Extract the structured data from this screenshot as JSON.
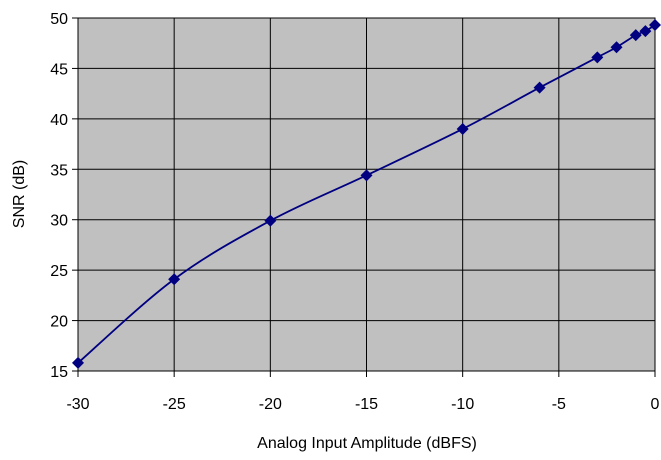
{
  "chart_data": {
    "type": "line",
    "title": "",
    "xlabel": "Analog Input Amplitude (dBFS)",
    "ylabel": "SNR (dB)",
    "xlim": [
      -30,
      0
    ],
    "ylim": [
      15,
      50
    ],
    "xticks": [
      -30,
      -25,
      -20,
      -15,
      -10,
      -5,
      0
    ],
    "yticks": [
      15,
      20,
      25,
      30,
      35,
      40,
      45,
      50
    ],
    "grid": true,
    "legend": "none",
    "colors": {
      "plot_background": "#c0c0c0",
      "line": "#000080",
      "marker": "#000080",
      "grid": "#000000"
    },
    "series": [
      {
        "x": [
          -30,
          -25,
          -20,
          -15,
          -10,
          -6,
          -3,
          -2,
          -1,
          -0.5,
          0
        ],
        "y": [
          15.8,
          24.1,
          29.9,
          34.4,
          39.0,
          43.1,
          46.1,
          47.1,
          48.3,
          48.7,
          49.3
        ]
      }
    ]
  }
}
